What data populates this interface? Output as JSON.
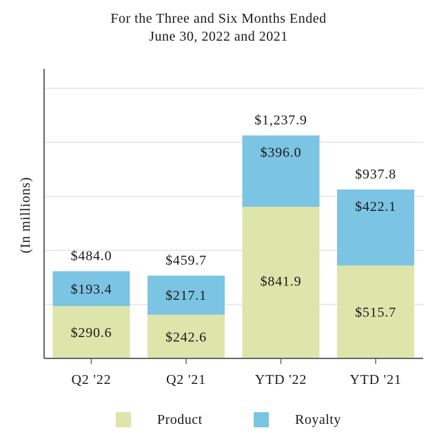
{
  "chart_data": {
    "type": "bar",
    "stacked": true,
    "title": "For the Three and Six Months Ended",
    "subtitle": "June 30, 2022 and 2021",
    "ylabel": "(In millions)",
    "xlabel": "",
    "categories": [
      "Q2 '22",
      "Q2 '21",
      "YTD '22",
      "YTD '21"
    ],
    "series": [
      {
        "name": "Product",
        "color": "#dde5ab",
        "values": [
          290.6,
          242.6,
          841.9,
          515.7
        ],
        "labels": [
          "$290.6",
          "$242.6",
          "$841.9",
          "$515.7"
        ]
      },
      {
        "name": "Royalty",
        "color": "#7cc4e3",
        "values": [
          193.4,
          217.1,
          396.0,
          422.1
        ],
        "labels": [
          "$193.4",
          "$217.1",
          "$396.0",
          "$422.1"
        ]
      }
    ],
    "totals": [
      484.0,
      459.7,
      1237.9,
      937.8
    ],
    "total_labels": [
      "$484.0",
      "$459.7",
      "$1,237.9",
      "$937.8"
    ],
    "ylim": [
      0,
      1500
    ],
    "grid_values": [
      300,
      600,
      900,
      1200
    ],
    "legend_position": "bottom"
  }
}
